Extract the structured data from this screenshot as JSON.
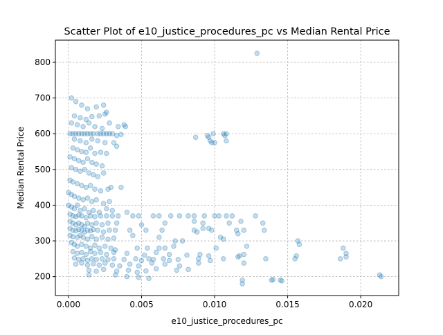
{
  "chart_data": {
    "type": "scatter",
    "title": "Scatter Plot of e10_justice_procedures_pc vs Median Rental Price",
    "xlabel": "e10_justice_procedures_pc",
    "ylabel": "Median Rental Price",
    "xlim": [
      -0.0009,
      0.0226
    ],
    "ylim": [
      147,
      862
    ],
    "xticks": [
      0.0,
      0.005,
      0.01,
      0.015,
      0.02
    ],
    "xtick_labels": [
      "0.000",
      "0.005",
      "0.010",
      "0.015",
      "0.020"
    ],
    "yticks": [
      200,
      300,
      400,
      500,
      600,
      700,
      800
    ],
    "ytick_labels": [
      "200",
      "300",
      "400",
      "500",
      "600",
      "700",
      "800"
    ],
    "grid": true,
    "marker_color": "#1f77b4",
    "marker_alpha": 0.25,
    "series": [
      {
        "points": [
          [
            0.0002,
            700
          ],
          [
            0.0005,
            690
          ],
          [
            0.0009,
            680
          ],
          [
            0.0013,
            670
          ],
          [
            0.0019,
            675
          ],
          [
            0.0024,
            680
          ],
          [
            0.0026,
            660
          ],
          [
            0.0004,
            650
          ],
          [
            0.0008,
            645
          ],
          [
            0.0012,
            640
          ],
          [
            0.0016,
            648
          ],
          [
            0.0021,
            650
          ],
          [
            0.0025,
            655
          ],
          [
            0.0002,
            630
          ],
          [
            0.0006,
            625
          ],
          [
            0.001,
            620
          ],
          [
            0.0014,
            630
          ],
          [
            0.0018,
            620
          ],
          [
            0.0023,
            615
          ],
          [
            0.0028,
            630
          ],
          [
            0.0034,
            620
          ],
          [
            0.0038,
            625
          ],
          [
            0.0039,
            620
          ],
          [
            0.0001,
            600
          ],
          [
            0.0003,
            600
          ],
          [
            0.0005,
            600
          ],
          [
            0.0007,
            600
          ],
          [
            0.0009,
            600
          ],
          [
            0.0011,
            600
          ],
          [
            0.0013,
            600
          ],
          [
            0.0015,
            600
          ],
          [
            0.0017,
            600
          ],
          [
            0.002,
            600
          ],
          [
            0.0022,
            600
          ],
          [
            0.0024,
            600
          ],
          [
            0.0026,
            600
          ],
          [
            0.0028,
            600
          ],
          [
            0.003,
            600
          ],
          [
            0.0033,
            595
          ],
          [
            0.0036,
            598
          ],
          [
            0.0004,
            585
          ],
          [
            0.0008,
            580
          ],
          [
            0.0012,
            575
          ],
          [
            0.0016,
            585
          ],
          [
            0.002,
            580
          ],
          [
            0.0025,
            575
          ],
          [
            0.0031,
            575
          ],
          [
            0.0033,
            565
          ],
          [
            0.0003,
            560
          ],
          [
            0.0006,
            555
          ],
          [
            0.0009,
            550
          ],
          [
            0.0012,
            548
          ],
          [
            0.0015,
            560
          ],
          [
            0.0018,
            545
          ],
          [
            0.0022,
            548
          ],
          [
            0.0026,
            545
          ],
          [
            0.0001,
            535
          ],
          [
            0.0004,
            530
          ],
          [
            0.0007,
            525
          ],
          [
            0.001,
            520
          ],
          [
            0.0013,
            530
          ],
          [
            0.0016,
            520
          ],
          [
            0.0019,
            515
          ],
          [
            0.0023,
            510
          ],
          [
            0.0002,
            505
          ],
          [
            0.0005,
            500
          ],
          [
            0.0008,
            495
          ],
          [
            0.0011,
            500
          ],
          [
            0.0014,
            490
          ],
          [
            0.0017,
            485
          ],
          [
            0.002,
            480
          ],
          [
            0.0024,
            490
          ],
          [
            0.0001,
            470
          ],
          [
            0.0003,
            465
          ],
          [
            0.0006,
            460
          ],
          [
            0.0009,
            455
          ],
          [
            0.0012,
            450
          ],
          [
            0.0015,
            455
          ],
          [
            0.0018,
            445
          ],
          [
            0.0022,
            440
          ],
          [
            0.0027,
            445
          ],
          [
            0.0029,
            450
          ],
          [
            0.0036,
            450
          ],
          [
            0.0,
            435
          ],
          [
            0.0002,
            430
          ],
          [
            0.0004,
            425
          ],
          [
            0.0007,
            420
          ],
          [
            0.001,
            415
          ],
          [
            0.0013,
            420
          ],
          [
            0.0016,
            410
          ],
          [
            0.0019,
            415
          ],
          [
            0.0024,
            405
          ],
          [
            0.0028,
            410
          ],
          [
            0.0,
            400
          ],
          [
            0.0002,
            395
          ],
          [
            0.0004,
            390
          ],
          [
            0.0006,
            400
          ],
          [
            0.0008,
            385
          ],
          [
            0.0011,
            390
          ],
          [
            0.0014,
            380
          ],
          [
            0.0017,
            385
          ],
          [
            0.0021,
            380
          ],
          [
            0.0026,
            390
          ],
          [
            0.003,
            385
          ],
          [
            0.004,
            380
          ],
          [
            0.0001,
            375
          ],
          [
            0.0003,
            370
          ],
          [
            0.0005,
            368
          ],
          [
            0.0007,
            372
          ],
          [
            0.0009,
            370
          ],
          [
            0.0012,
            365
          ],
          [
            0.0015,
            370
          ],
          [
            0.0018,
            368
          ],
          [
            0.0022,
            370
          ],
          [
            0.0026,
            370
          ],
          [
            0.003,
            370
          ],
          [
            0.0034,
            370
          ],
          [
            0.0044,
            370
          ],
          [
            0.0048,
            370
          ],
          [
            0.0058,
            370
          ],
          [
            0.0062,
            370
          ],
          [
            0.007,
            370
          ],
          [
            0.0076,
            370
          ],
          [
            0.0082,
            370
          ],
          [
            0.0086,
            370
          ],
          [
            0.0093,
            370
          ],
          [
            0.01,
            370
          ],
          [
            0.0103,
            370
          ],
          [
            0.0108,
            370
          ],
          [
            0.0112,
            370
          ],
          [
            0.0128,
            370
          ],
          [
            0.0001,
            355
          ],
          [
            0.0003,
            350
          ],
          [
            0.0005,
            345
          ],
          [
            0.0007,
            350
          ],
          [
            0.0009,
            345
          ],
          [
            0.0011,
            340
          ],
          [
            0.0013,
            350
          ],
          [
            0.0016,
            345
          ],
          [
            0.0019,
            350
          ],
          [
            0.0023,
            345
          ],
          [
            0.0027,
            350
          ],
          [
            0.0033,
            350
          ],
          [
            0.005,
            345
          ],
          [
            0.0066,
            350
          ],
          [
            0.0086,
            355
          ],
          [
            0.0092,
            350
          ],
          [
            0.011,
            350
          ],
          [
            0.0118,
            355
          ],
          [
            0.0133,
            350
          ],
          [
            0.0001,
            335
          ],
          [
            0.0003,
            330
          ],
          [
            0.0005,
            328
          ],
          [
            0.0007,
            332
          ],
          [
            0.0009,
            330
          ],
          [
            0.0011,
            325
          ],
          [
            0.0013,
            330
          ],
          [
            0.0015,
            328
          ],
          [
            0.0017,
            332
          ],
          [
            0.002,
            330
          ],
          [
            0.0024,
            325
          ],
          [
            0.0028,
            330
          ],
          [
            0.0032,
            330
          ],
          [
            0.0042,
            330
          ],
          [
            0.0053,
            330
          ],
          [
            0.0064,
            330
          ],
          [
            0.0086,
            330
          ],
          [
            0.0092,
            335
          ],
          [
            0.0098,
            330
          ],
          [
            0.0115,
            330
          ],
          [
            0.012,
            330
          ],
          [
            0.0134,
            330
          ],
          [
            0.0001,
            315
          ],
          [
            0.0003,
            312
          ],
          [
            0.0006,
            310
          ],
          [
            0.0008,
            315
          ],
          [
            0.001,
            310
          ],
          [
            0.0013,
            305
          ],
          [
            0.0016,
            312
          ],
          [
            0.0019,
            305
          ],
          [
            0.0023,
            310
          ],
          [
            0.0027,
            305
          ],
          [
            0.0031,
            308
          ],
          [
            0.0044,
            315
          ],
          [
            0.0062,
            310
          ],
          [
            0.0073,
            300
          ],
          [
            0.0078,
            300
          ],
          [
            0.0104,
            310
          ],
          [
            0.0106,
            305
          ],
          [
            0.0157,
            300
          ],
          [
            0.0158,
            290
          ],
          [
            0.0002,
            295
          ],
          [
            0.0004,
            290
          ],
          [
            0.0006,
            285
          ],
          [
            0.0009,
            290
          ],
          [
            0.0012,
            285
          ],
          [
            0.0015,
            280
          ],
          [
            0.0018,
            288
          ],
          [
            0.0021,
            280
          ],
          [
            0.0025,
            285
          ],
          [
            0.0029,
            280
          ],
          [
            0.0032,
            275
          ],
          [
            0.0047,
            280
          ],
          [
            0.0054,
            280
          ],
          [
            0.0062,
            280
          ],
          [
            0.0066,
            280
          ],
          [
            0.0072,
            285
          ],
          [
            0.0101,
            280
          ],
          [
            0.0122,
            285
          ],
          [
            0.0188,
            280
          ],
          [
            0.0003,
            270
          ],
          [
            0.0006,
            265
          ],
          [
            0.0009,
            268
          ],
          [
            0.0012,
            262
          ],
          [
            0.0015,
            270
          ],
          [
            0.0018,
            265
          ],
          [
            0.0022,
            268
          ],
          [
            0.0026,
            262
          ],
          [
            0.0031,
            268
          ],
          [
            0.004,
            265
          ],
          [
            0.0052,
            260
          ],
          [
            0.006,
            268
          ],
          [
            0.0069,
            262
          ],
          [
            0.0081,
            260
          ],
          [
            0.009,
            262
          ],
          [
            0.0096,
            258
          ],
          [
            0.0117,
            258
          ],
          [
            0.012,
            262
          ],
          [
            0.0156,
            258
          ],
          [
            0.019,
            265
          ],
          [
            0.0004,
            252
          ],
          [
            0.0007,
            248
          ],
          [
            0.001,
            250
          ],
          [
            0.0013,
            245
          ],
          [
            0.0016,
            250
          ],
          [
            0.0019,
            248
          ],
          [
            0.0023,
            250
          ],
          [
            0.0027,
            248
          ],
          [
            0.0031,
            250
          ],
          [
            0.0038,
            248
          ],
          [
            0.0046,
            250
          ],
          [
            0.005,
            245
          ],
          [
            0.0055,
            250
          ],
          [
            0.0058,
            248
          ],
          [
            0.0065,
            250
          ],
          [
            0.0069,
            245
          ],
          [
            0.0075,
            248
          ],
          [
            0.0089,
            250
          ],
          [
            0.0097,
            245
          ],
          [
            0.0106,
            250
          ],
          [
            0.0116,
            255
          ],
          [
            0.0135,
            250
          ],
          [
            0.0155,
            250
          ],
          [
            0.0186,
            250
          ],
          [
            0.019,
            255
          ],
          [
            0.0005,
            235
          ],
          [
            0.0009,
            238
          ],
          [
            0.0013,
            232
          ],
          [
            0.0017,
            236
          ],
          [
            0.0021,
            232
          ],
          [
            0.0025,
            238
          ],
          [
            0.003,
            232
          ],
          [
            0.0035,
            230
          ],
          [
            0.0042,
            235
          ],
          [
            0.0048,
            230
          ],
          [
            0.0057,
            238
          ],
          [
            0.0066,
            235
          ],
          [
            0.0076,
            230
          ],
          [
            0.0089,
            238
          ],
          [
            0.012,
            238
          ],
          [
            0.0014,
            218
          ],
          [
            0.0019,
            215
          ],
          [
            0.0024,
            220
          ],
          [
            0.0033,
            215
          ],
          [
            0.0041,
            218
          ],
          [
            0.0047,
            212
          ],
          [
            0.0053,
            216
          ],
          [
            0.006,
            222
          ],
          [
            0.0074,
            218
          ],
          [
            0.0082,
            220
          ],
          [
            0.0014,
            205
          ],
          [
            0.0032,
            205
          ],
          [
            0.004,
            200
          ],
          [
            0.0048,
            198
          ],
          [
            0.0055,
            195
          ],
          [
            0.0213,
            205
          ],
          [
            0.0214,
            200
          ],
          [
            0.0119,
            190
          ],
          [
            0.0119,
            180
          ],
          [
            0.0139,
            190
          ],
          [
            0.014,
            192
          ],
          [
            0.0145,
            190
          ],
          [
            0.0146,
            188
          ],
          [
            0.0087,
            590
          ],
          [
            0.0095,
            595
          ],
          [
            0.0096,
            590
          ],
          [
            0.0097,
            580
          ],
          [
            0.0099,
            600
          ],
          [
            0.01,
            575
          ],
          [
            0.0106,
            600
          ],
          [
            0.0107,
            595
          ],
          [
            0.0108,
            600
          ],
          [
            0.0108,
            580
          ],
          [
            0.0098,
            575
          ],
          [
            0.0129,
            825
          ],
          [
            0.0088,
            325
          ],
          [
            0.0096,
            335
          ],
          [
            0.0116,
            320
          ]
        ]
      }
    ]
  }
}
